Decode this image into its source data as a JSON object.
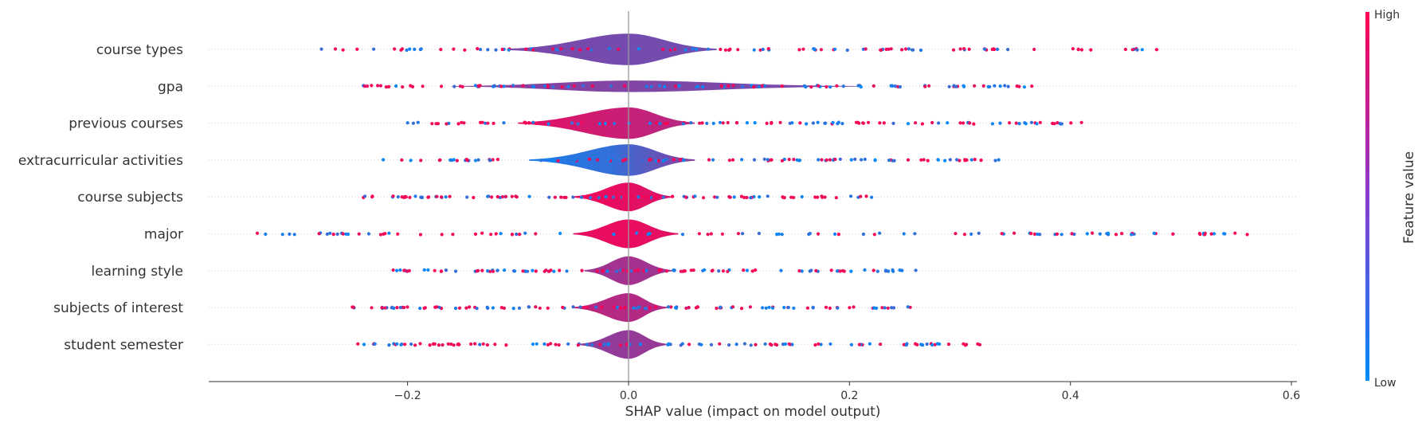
{
  "chart_data": {
    "type": "violin",
    "xlabel": "SHAP value (impact on model output)",
    "xlim": [
      -0.38,
      0.605
    ],
    "xticks": [
      -0.2,
      0.0,
      0.2,
      0.4,
      0.6
    ],
    "xtick_labels": [
      "−0.2",
      "0.0",
      "0.2",
      "0.4",
      "0.6"
    ],
    "features": [
      {
        "name": "course types",
        "min": -0.278,
        "max": 0.478,
        "q_low": -0.11,
        "q_high": 0.08,
        "peak": 0.055,
        "violin_colors": [
          0.48,
          0.46,
          0.44
        ],
        "dot_bias": 0.6
      },
      {
        "name": "gpa",
        "min": -0.24,
        "max": 0.365,
        "q_low": -0.16,
        "q_high": 0.21,
        "peak": 0.02,
        "violin_colors": [
          0.55,
          0.5,
          0.45
        ],
        "dot_bias": 0.5
      },
      {
        "name": "previous courses",
        "min": -0.2,
        "max": 0.41,
        "q_low": -0.1,
        "q_high": 0.06,
        "peak": 0.055,
        "violin_colors": [
          0.9,
          0.8,
          0.7
        ],
        "dot_bias": 0.55
      },
      {
        "name": "extracurricular activities",
        "min": -0.222,
        "max": 0.335,
        "q_low": -0.09,
        "q_high": 0.06,
        "peak": 0.055,
        "violin_colors": [
          0.1,
          0.2,
          0.55
        ],
        "dot_bias": 0.5
      },
      {
        "name": "course subjects",
        "min": -0.24,
        "max": 0.22,
        "q_low": -0.05,
        "q_high": 0.04,
        "peak": 0.05,
        "violin_colors": [
          0.95,
          0.9,
          0.85
        ],
        "dot_bias": 0.6
      },
      {
        "name": "major",
        "min": -0.336,
        "max": 0.56,
        "q_low": -0.05,
        "q_high": 0.045,
        "peak": 0.05,
        "violin_colors": [
          0.9,
          0.92,
          0.88
        ],
        "dot_bias": 0.55
      },
      {
        "name": "learning style",
        "min": -0.213,
        "max": 0.26,
        "q_low": -0.04,
        "q_high": 0.04,
        "peak": 0.05,
        "violin_colors": [
          0.6,
          0.65,
          0.6
        ],
        "dot_bias": 0.55
      },
      {
        "name": "subjects of interest",
        "min": -0.25,
        "max": 0.255,
        "q_low": -0.05,
        "q_high": 0.035,
        "peak": 0.05,
        "violin_colors": [
          0.75,
          0.7,
          0.7
        ],
        "dot_bias": 0.5
      },
      {
        "name": "student semester",
        "min": -0.245,
        "max": 0.318,
        "q_low": -0.045,
        "q_high": 0.035,
        "peak": 0.05,
        "violin_colors": [
          0.55,
          0.58,
          0.6
        ],
        "dot_bias": 0.5
      }
    ],
    "colorbar": {
      "title": "Feature value",
      "high_label": "High",
      "low_label": "Low",
      "low_color": "#008bfb",
      "high_color": "#ff0051"
    }
  }
}
